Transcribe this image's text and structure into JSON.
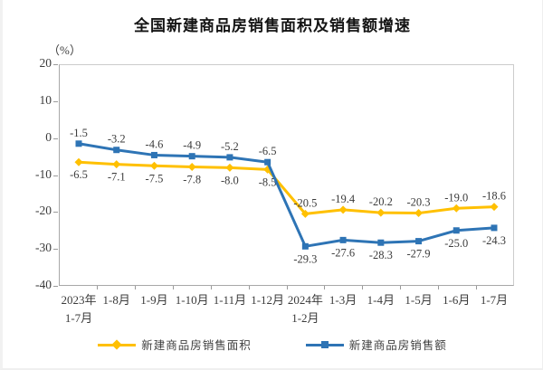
{
  "title": "全国新建商品房销售面积及销售额增速",
  "unit_label": "（%）",
  "chart_data": {
    "type": "line",
    "categories": [
      "2023年\n1-7月",
      "1-8月",
      "1-9月",
      "1-10月",
      "1-11月",
      "1-12月",
      "2024年\n1-2月",
      "1-3月",
      "1-4月",
      "1-5月",
      "1-6月",
      "1-7月"
    ],
    "series": [
      {
        "id": "sales-area",
        "name": "新建商品房销售面积",
        "color": "#FFC000",
        "marker": "diamond",
        "values": [
          -6.5,
          -7.1,
          -7.5,
          -7.8,
          -8.0,
          -8.5,
          -20.5,
          -19.4,
          -20.2,
          -20.3,
          -19.0,
          -18.6
        ],
        "labels": [
          "-6.5",
          "-7.1",
          "-7.5",
          "-7.8",
          "-8.0",
          "-8.5",
          "-20.5",
          "-19.4",
          "-20.2",
          "-20.3",
          "-19.0",
          "-18.6"
        ],
        "label_sides": [
          "below",
          "below",
          "below",
          "below",
          "below",
          "below",
          "above",
          "above",
          "above",
          "above",
          "above",
          "above"
        ]
      },
      {
        "id": "sales-amount",
        "name": "新建商品房销售额",
        "color": "#2E74B5",
        "marker": "square",
        "values": [
          -1.5,
          -3.2,
          -4.6,
          -4.9,
          -5.2,
          -6.5,
          -29.3,
          -27.6,
          -28.3,
          -27.9,
          -25.0,
          -24.3
        ],
        "labels": [
          "-1.5",
          "-3.2",
          "-4.6",
          "-4.9",
          "-5.2",
          "-6.5",
          "-29.3",
          "-27.6",
          "-28.3",
          "-27.9",
          "-25.0",
          "-24.3"
        ],
        "label_sides": [
          "above",
          "above",
          "above",
          "above",
          "above",
          "above",
          "below",
          "below",
          "below",
          "below",
          "below",
          "below"
        ]
      }
    ],
    "ylim": [
      -40,
      20
    ],
    "yticks": [
      20,
      10,
      0,
      -10,
      -20,
      -30,
      -40
    ],
    "grid": false,
    "legend_position": "bottom"
  }
}
